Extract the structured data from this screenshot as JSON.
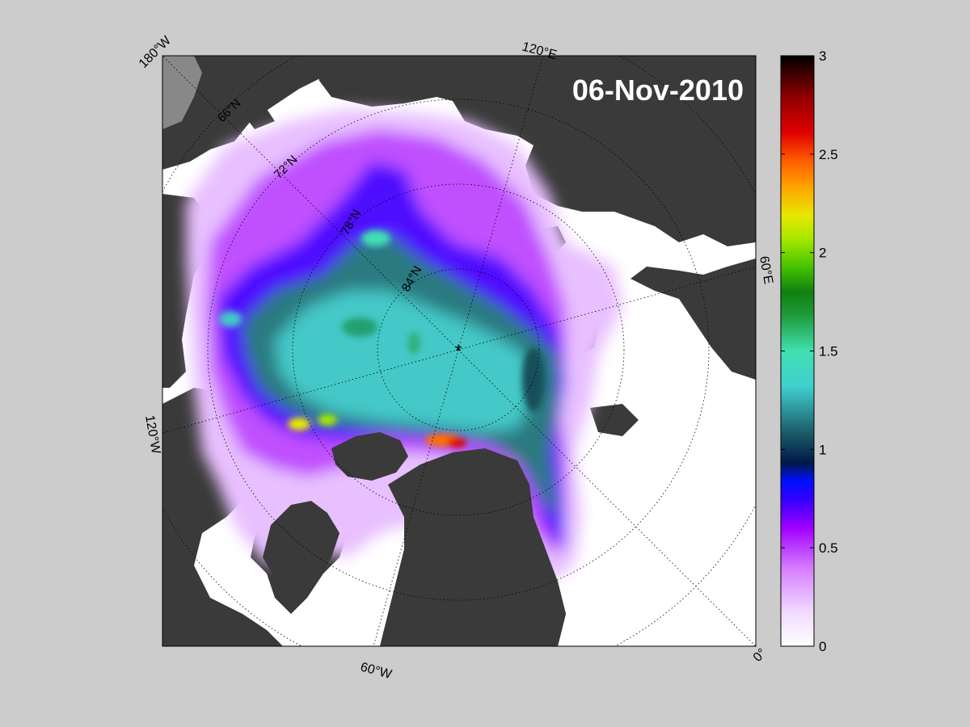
{
  "map": {
    "date": "06-Nov-2010",
    "longitude_labels": [
      "180°W",
      "120°E",
      "60°E",
      "0°",
      "60°W",
      "120°W"
    ],
    "latitude_labels": [
      "66°N",
      "72°N",
      "78°N",
      "84°N"
    ],
    "north_pole_marker": "*"
  },
  "colorbar": {
    "min": 0,
    "max": 3,
    "ticks": [
      "0",
      "0.5",
      "1",
      "1.5",
      "2",
      "2.5",
      "3"
    ],
    "colors": [
      "#ffffff",
      "#e6b3ff",
      "#a800ff",
      "#5a00ff",
      "#0000ff",
      "#001840",
      "#1a5f6a",
      "#3fc7c7",
      "#40e0b0",
      "#1f9a2a",
      "#78e000",
      "#e8e800",
      "#ffa000",
      "#e83000",
      "#c00000",
      "#500000",
      "#000000"
    ]
  },
  "colors": {
    "background": "#cccccc",
    "land": "#3a3a3a",
    "ocean_open": "#ffffff",
    "ice_thin": "#cc66ff",
    "ice_mid": "#3fc7c7"
  }
}
